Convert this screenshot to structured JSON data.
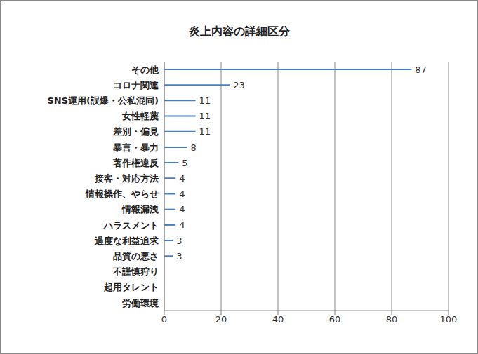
{
  "chart_data": {
    "type": "bar",
    "title": "炎上内容の詳細区分",
    "orientation": "horizontal",
    "categories": [
      "その他",
      "コロナ関連",
      "SNS運用(誤爆・公私混同)",
      "女性軽蔑",
      "差別・偏見",
      "暴言・暴力",
      "著作権違反",
      "接客・対応方法",
      "情報操作、やらせ",
      "情報漏洩",
      "ハラスメント",
      "過度な利益追求",
      "品質の悪さ",
      "不謹慎狩り",
      "起用タレント",
      "労働環境"
    ],
    "values": [
      87,
      23,
      11,
      11,
      11,
      8,
      5,
      4,
      4,
      4,
      4,
      3,
      3,
      0,
      0,
      0
    ],
    "color": "#4a7ebb",
    "xlim": [
      0,
      100
    ],
    "xticks": [
      0,
      20,
      40,
      60,
      80,
      100
    ],
    "grid": true,
    "data_labels": true
  }
}
